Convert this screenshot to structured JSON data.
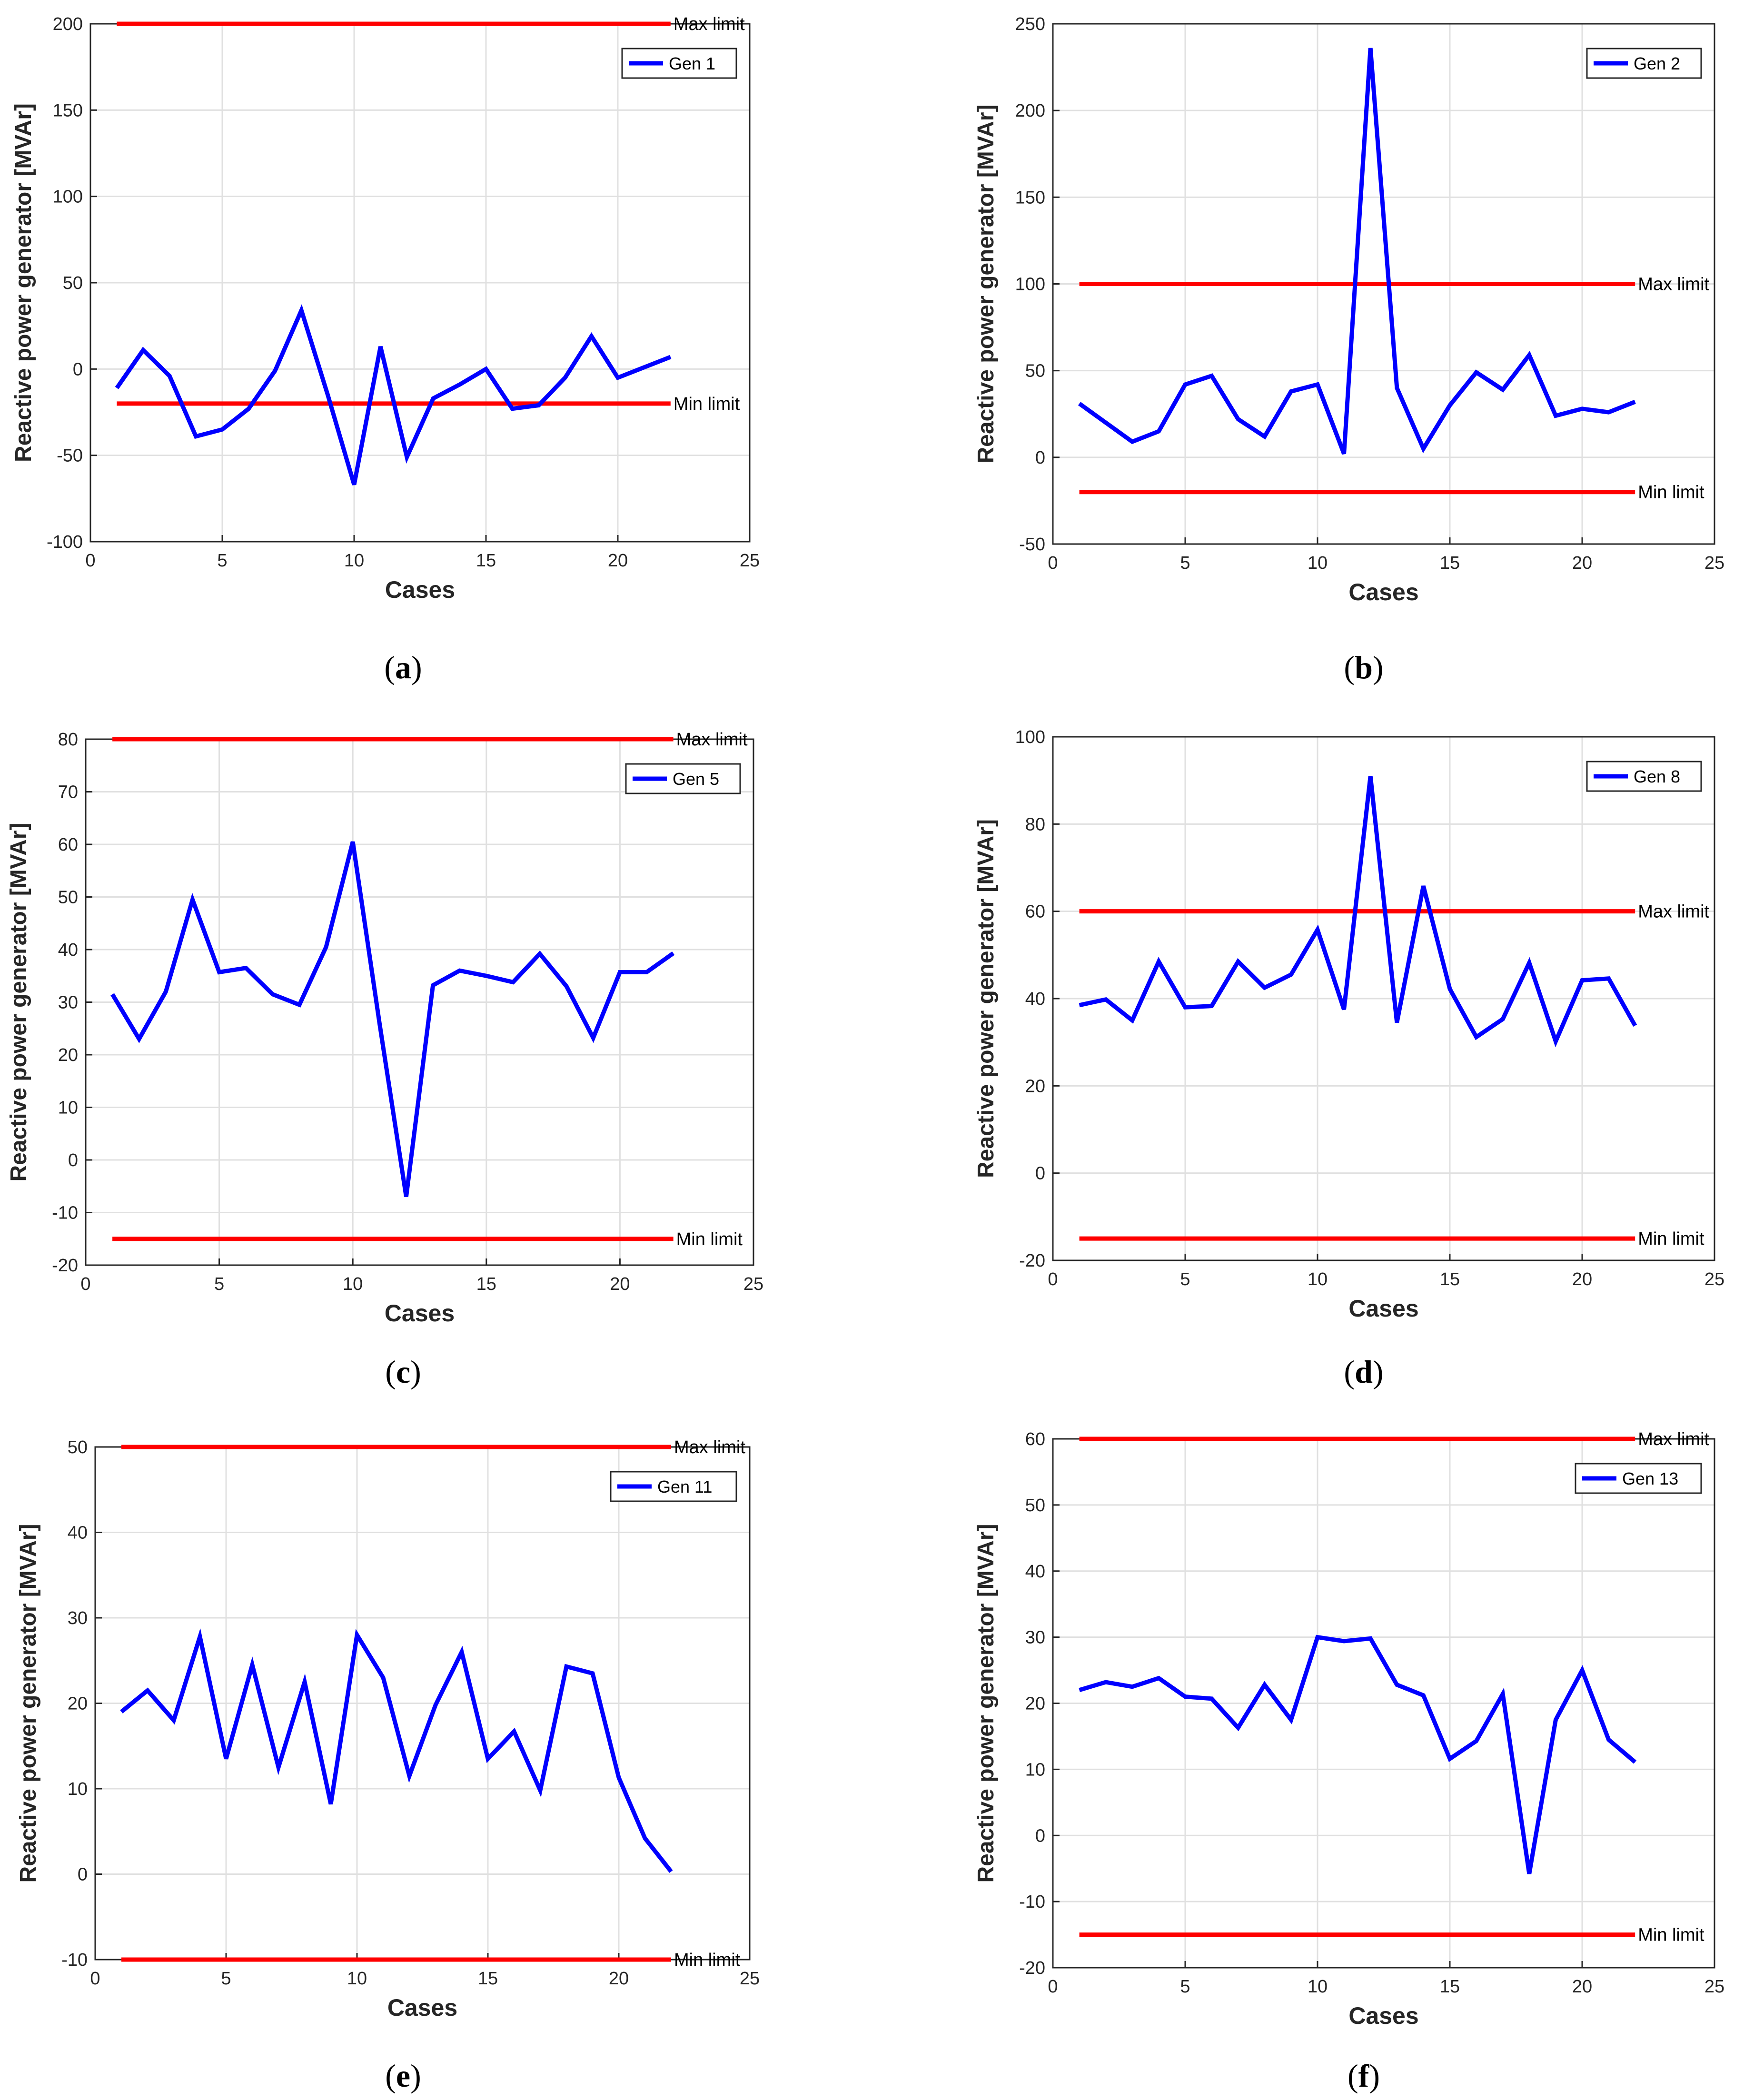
{
  "figure": {
    "subplot_count": 6
  },
  "chart_data": [
    {
      "type": "line",
      "caption": "(a)",
      "caption_letter": "a",
      "xlabel": "Cases",
      "ylabel": "Reactive power generator [MVAr]",
      "xlim": [
        0,
        25
      ],
      "ylim": [
        -100,
        200
      ],
      "xticks": [
        0,
        5,
        10,
        15,
        20,
        25
      ],
      "yticks": [
        -100,
        -50,
        0,
        50,
        100,
        150,
        200
      ],
      "grid": true,
      "legend_position": "top-right",
      "series": [
        {
          "name": "Gen 1",
          "color": "#0000ff",
          "x": [
            1,
            2,
            3,
            4,
            5,
            6,
            7,
            8,
            9,
            10,
            11,
            12,
            13,
            14,
            15,
            16,
            17,
            18,
            19,
            20,
            21,
            22
          ],
          "y": [
            -11,
            11,
            -4,
            -39,
            -35,
            -23,
            -1,
            34,
            -15,
            -67,
            13,
            -51,
            -17,
            -9,
            0,
            -23,
            -21,
            -5,
            19,
            -5,
            1,
            7
          ]
        }
      ],
      "limits": [
        {
          "label": "Max limit",
          "value": 200,
          "color": "#ff0000"
        },
        {
          "label": "Min limit",
          "value": -20,
          "color": "#ff0000"
        }
      ]
    },
    {
      "type": "line",
      "caption": "(b)",
      "caption_letter": "b",
      "xlabel": "Cases",
      "ylabel": "Reactive power generator [MVAr]",
      "xlim": [
        0,
        25
      ],
      "ylim": [
        -50,
        250
      ],
      "xticks": [
        0,
        5,
        10,
        15,
        20,
        25
      ],
      "yticks": [
        -50,
        0,
        50,
        100,
        150,
        200,
        250
      ],
      "grid": true,
      "legend_position": "top-right",
      "series": [
        {
          "name": "Gen 2",
          "color": "#0000ff",
          "x": [
            1,
            2,
            3,
            4,
            5,
            6,
            7,
            8,
            9,
            10,
            11,
            12,
            13,
            14,
            15,
            16,
            17,
            18,
            19,
            20,
            21,
            22
          ],
          "y": [
            31,
            20,
            9,
            15,
            42,
            47,
            22,
            12,
            38,
            42,
            2,
            236,
            40,
            5,
            30,
            49,
            39,
            59,
            24,
            28,
            26,
            32
          ]
        }
      ],
      "limits": [
        {
          "label": "Max limit",
          "value": 100,
          "color": "#ff0000"
        },
        {
          "label": "Min limit",
          "value": -20,
          "color": "#ff0000"
        }
      ]
    },
    {
      "type": "line",
      "caption": "(c)",
      "caption_letter": "c",
      "xlabel": "Cases",
      "ylabel": "Reactive power generator [MVAr]",
      "xlim": [
        0,
        25
      ],
      "ylim": [
        -20,
        80
      ],
      "xticks": [
        0,
        5,
        10,
        15,
        20,
        25
      ],
      "yticks": [
        -20,
        -10,
        0,
        10,
        20,
        30,
        40,
        50,
        60,
        70,
        80
      ],
      "grid": true,
      "legend_position": "top-right",
      "series": [
        {
          "name": "Gen 5",
          "color": "#0000ff",
          "x": [
            1,
            2,
            3,
            4,
            5,
            6,
            7,
            8,
            9,
            10,
            11,
            12,
            13,
            14,
            15,
            16,
            17,
            18,
            19,
            20,
            21,
            22
          ],
          "y": [
            31.5,
            23,
            32,
            49.5,
            35.7,
            36.5,
            31.5,
            29.5,
            40.5,
            60.5,
            26,
            -7,
            33.2,
            36,
            35,
            33.8,
            39.2,
            33,
            23.2,
            35.7,
            35.7,
            39.3
          ]
        }
      ],
      "limits": [
        {
          "label": "Max limit",
          "value": 80,
          "color": "#ff0000"
        },
        {
          "label": "Min limit",
          "value": -15,
          "color": "#ff0000"
        }
      ]
    },
    {
      "type": "line",
      "caption": "(d)",
      "caption_letter": "d",
      "xlabel": "Cases",
      "ylabel": "Reactive power generator [MVAr]",
      "xlim": [
        0,
        25
      ],
      "ylim": [
        -20,
        100
      ],
      "xticks": [
        0,
        5,
        10,
        15,
        20,
        25
      ],
      "yticks": [
        -20,
        0,
        20,
        40,
        60,
        80,
        100
      ],
      "grid": true,
      "legend_position": "top-right",
      "series": [
        {
          "name": "Gen 8",
          "color": "#0000ff",
          "x": [
            1,
            2,
            3,
            4,
            5,
            6,
            7,
            8,
            9,
            10,
            11,
            12,
            13,
            14,
            15,
            16,
            17,
            18,
            19,
            20,
            21,
            22
          ],
          "y": [
            38.5,
            39.8,
            35,
            48.5,
            38,
            38.3,
            48.5,
            42.5,
            45.5,
            55.8,
            37.5,
            91,
            34.5,
            65.8,
            42.2,
            31.2,
            35.3,
            48.2,
            30.2,
            44.2,
            44.6,
            33.8
          ]
        }
      ],
      "limits": [
        {
          "label": "Max limit",
          "value": 60,
          "color": "#ff0000"
        },
        {
          "label": "Min limit",
          "value": -15,
          "color": "#ff0000"
        }
      ]
    },
    {
      "type": "line",
      "caption": "(e)",
      "caption_letter": "e",
      "xlabel": "Cases",
      "ylabel": "Reactive power generator [MVAr]",
      "xlim": [
        0,
        25
      ],
      "ylim": [
        -10,
        50
      ],
      "xticks": [
        0,
        5,
        10,
        15,
        20,
        25
      ],
      "yticks": [
        -10,
        0,
        10,
        20,
        30,
        40,
        50
      ],
      "grid": true,
      "legend_position": "top-right",
      "series": [
        {
          "name": "Gen 11",
          "color": "#0000ff",
          "x": [
            1,
            2,
            3,
            4,
            5,
            6,
            7,
            8,
            9,
            10,
            11,
            12,
            13,
            14,
            15,
            16,
            17,
            18,
            19,
            20,
            21,
            22
          ],
          "y": [
            19,
            21.5,
            18,
            27.8,
            13.5,
            24.5,
            12.5,
            22.5,
            8.2,
            28,
            23,
            11.5,
            19.8,
            26,
            13.5,
            16.7,
            9.8,
            24.3,
            23.5,
            11.3,
            4.2,
            0.3
          ]
        }
      ],
      "limits": [
        {
          "label": "Max limit",
          "value": 50,
          "color": "#ff0000"
        },
        {
          "label": "Min limit",
          "value": -10,
          "color": "#ff0000"
        }
      ]
    },
    {
      "type": "line",
      "caption": "(f)",
      "caption_letter": "f",
      "xlabel": "Cases",
      "ylabel": "Reactive power generator [MVAr]",
      "xlim": [
        0,
        25
      ],
      "ylim": [
        -20,
        60
      ],
      "xticks": [
        0,
        5,
        10,
        15,
        20,
        25
      ],
      "yticks": [
        -20,
        -10,
        0,
        10,
        20,
        30,
        40,
        50,
        60
      ],
      "grid": true,
      "legend_position": "top-right",
      "series": [
        {
          "name": "Gen 13",
          "color": "#0000ff",
          "x": [
            1,
            2,
            3,
            4,
            5,
            6,
            7,
            8,
            9,
            10,
            11,
            12,
            13,
            14,
            15,
            16,
            17,
            18,
            19,
            20,
            21,
            22
          ],
          "y": [
            22,
            23.2,
            22.5,
            23.8,
            21,
            20.7,
            16.3,
            22.8,
            17.5,
            30,
            29.4,
            29.8,
            22.8,
            21.2,
            11.6,
            14.3,
            21.4,
            -5.8,
            17.5,
            25,
            14.5,
            11.1
          ]
        }
      ],
      "limits": [
        {
          "label": "Max limit",
          "value": 60,
          "color": "#ff0000"
        },
        {
          "label": "Min limit",
          "value": -15,
          "color": "#ff0000"
        }
      ]
    }
  ]
}
